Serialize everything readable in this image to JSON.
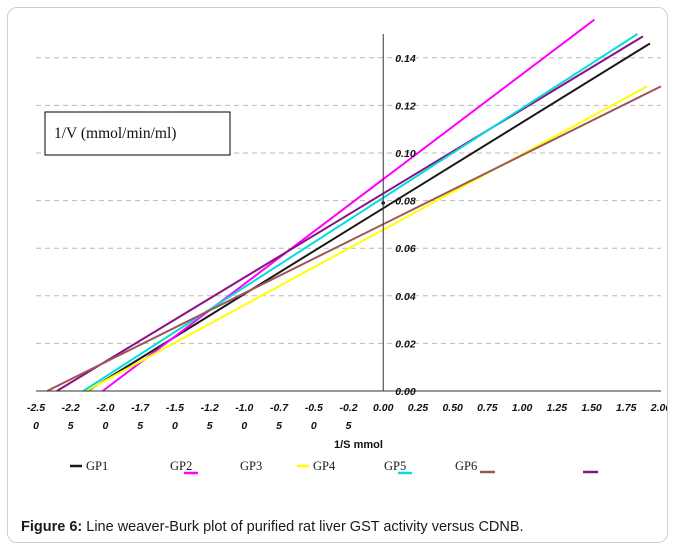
{
  "figure": {
    "caption_label": "Figure 6:",
    "caption_text": " Line weaver-Burk plot of purified rat liver GST activity versus CDNB."
  },
  "chart_data": {
    "type": "line",
    "title": "",
    "xlabel": "1/S mmol",
    "ylabel": "1/V (mmol/min/ml)",
    "xlim": [
      -2.5,
      2.0
    ],
    "ylim": [
      0.0,
      0.15
    ],
    "x_tick_labels": [
      [
        "-2.5",
        "0"
      ],
      [
        "-2.2",
        "5"
      ],
      [
        "-2.0",
        "0"
      ],
      [
        "-1.7",
        "5"
      ],
      [
        "-1.5",
        "0"
      ],
      [
        "-1.2",
        "5"
      ],
      [
        "-1.0",
        "0"
      ],
      [
        "-0.7",
        "5"
      ],
      [
        "-0.5",
        "0"
      ],
      [
        "-0.2",
        "5"
      ],
      [
        "0.00"
      ],
      [
        "0.25"
      ],
      [
        "0.50"
      ],
      [
        "0.75"
      ],
      [
        "1.00"
      ],
      [
        "1.25"
      ],
      [
        "1.50"
      ],
      [
        "1.75"
      ],
      [
        "2.00"
      ]
    ],
    "y_tick_labels": [
      "0.00",
      "0.02",
      "0.04",
      "0.06",
      "0.08",
      "0.10",
      "0.12",
      "0.14"
    ],
    "grid": "horizontal dashed",
    "legend_position": "bottom",
    "series": [
      {
        "name": "GP1",
        "color": "#1a1a1a",
        "x": [
          -2.13,
          1.92
        ],
        "y": [
          0.0,
          0.146
        ]
      },
      {
        "name": "GP2",
        "color": "#ff00ff",
        "x": [
          -2.02,
          1.52
        ],
        "y": [
          0.0,
          0.156
        ]
      },
      {
        "name": "GP3",
        "color": "#8b0f85",
        "x": [
          -2.35,
          1.87
        ],
        "y": [
          0.0,
          0.149
        ]
      },
      {
        "name": "GP4",
        "color": "#ffff00",
        "x": [
          -2.14,
          1.9
        ],
        "y": [
          0.0,
          0.128
        ]
      },
      {
        "name": "GP5",
        "color": "#00dddd",
        "x": [
          -2.16,
          1.83
        ],
        "y": [
          0.0,
          0.15
        ]
      },
      {
        "name": "GP6",
        "color": "#a05555",
        "x": [
          -2.42,
          2.0
        ],
        "y": [
          0.0,
          0.128
        ]
      }
    ],
    "legend": [
      {
        "label": "GP1",
        "color": "#1a1a1a",
        "swatch": "before"
      },
      {
        "label": "GP2",
        "color": "#ff00ff",
        "swatch": "under"
      },
      {
        "label": "GP3",
        "color": "#1a1a1a",
        "swatch": "none"
      },
      {
        "label": "GP4",
        "color": "#ffff00",
        "swatch": "before"
      },
      {
        "label": "GP5",
        "color": "#00dddd",
        "swatch": "under"
      },
      {
        "label": "GP6",
        "color": "#a05555",
        "swatch": "after"
      },
      {
        "label": "",
        "color": "#8b0f85",
        "swatch": "only"
      }
    ]
  }
}
